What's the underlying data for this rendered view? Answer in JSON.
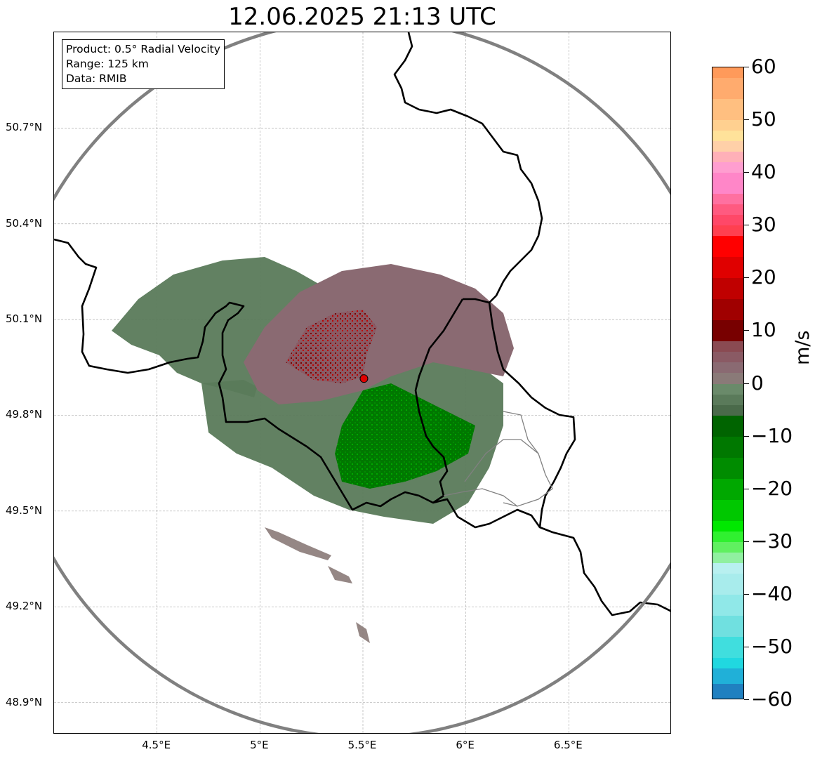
{
  "title": "12.06.2025 21:13 UTC",
  "info_box": {
    "product": "Product: 0.5° Radial Velocity",
    "range": "Range: 125 km",
    "data_source": "Data: RMIB"
  },
  "map": {
    "lon_range": [
      4.0,
      7.0
    ],
    "lat_range": [
      48.8,
      51.0
    ],
    "radar_site": {
      "lon": 5.505,
      "lat": 49.915
    },
    "range_ring_km": 125,
    "lon_ticks": [
      {
        "value": 4.5,
        "label": "4.5°E"
      },
      {
        "value": 5.0,
        "label": "5°E"
      },
      {
        "value": 5.5,
        "label": "5.5°E"
      },
      {
        "value": 6.0,
        "label": "6°E"
      },
      {
        "value": 6.5,
        "label": "6.5°E"
      }
    ],
    "lat_ticks": [
      {
        "value": 50.7,
        "label": "50.7°N"
      },
      {
        "value": 50.4,
        "label": "50.4°N"
      },
      {
        "value": 50.1,
        "label": "50.1°N"
      },
      {
        "value": 49.8,
        "label": "49.8°N"
      },
      {
        "value": 49.5,
        "label": "49.5°N"
      },
      {
        "value": 49.2,
        "label": "49.2°N"
      },
      {
        "value": 48.9,
        "label": "48.9°N"
      }
    ],
    "gridlines": true,
    "colors": {
      "border": "#000000",
      "province_border": "#808080",
      "range_ring": "#808080",
      "grid": "#b0b0b0",
      "radar_site": "#e00000"
    }
  },
  "colorbar": {
    "unit": "m/s",
    "min": -60,
    "max": 60,
    "ticks": [
      {
        "value": 60,
        "label": "60"
      },
      {
        "value": 50,
        "label": "50"
      },
      {
        "value": 40,
        "label": "40"
      },
      {
        "value": 30,
        "label": "30"
      },
      {
        "value": 20,
        "label": "20"
      },
      {
        "value": 10,
        "label": "10"
      },
      {
        "value": 0,
        "label": "0"
      },
      {
        "value": -10,
        "label": "−10"
      },
      {
        "value": -20,
        "label": "−20"
      },
      {
        "value": -30,
        "label": "−30"
      },
      {
        "value": -40,
        "label": "−40"
      },
      {
        "value": -50,
        "label": "−50"
      },
      {
        "value": -60,
        "label": "−60"
      }
    ],
    "stops": [
      {
        "from": 58,
        "to": 60,
        "color": "#ff9a5a"
      },
      {
        "from": 54,
        "to": 58,
        "color": "#ffab6e"
      },
      {
        "from": 50,
        "to": 54,
        "color": "#ffbf80"
      },
      {
        "from": 48,
        "to": 50,
        "color": "#ffd090"
      },
      {
        "from": 46,
        "to": 48,
        "color": "#ffe29a"
      },
      {
        "from": 44,
        "to": 46,
        "color": "#ffd0a8"
      },
      {
        "from": 42,
        "to": 44,
        "color": "#ffb0b8"
      },
      {
        "from": 40,
        "to": 42,
        "color": "#ff9ed0"
      },
      {
        "from": 36,
        "to": 40,
        "color": "#ff86c8"
      },
      {
        "from": 34,
        "to": 36,
        "color": "#ff70a0"
      },
      {
        "from": 32,
        "to": 34,
        "color": "#ff5a80"
      },
      {
        "from": 30,
        "to": 32,
        "color": "#ff4868"
      },
      {
        "from": 28,
        "to": 30,
        "color": "#ff4050"
      },
      {
        "from": 24,
        "to": 28,
        "color": "#ff0000"
      },
      {
        "from": 20,
        "to": 24,
        "color": "#e00000"
      },
      {
        "from": 16,
        "to": 20,
        "color": "#c00000"
      },
      {
        "from": 12,
        "to": 16,
        "color": "#a00000"
      },
      {
        "from": 8,
        "to": 12,
        "color": "#780000"
      },
      {
        "from": 6,
        "to": 8,
        "color": "#8a4a52"
      },
      {
        "from": 4,
        "to": 6,
        "color": "#8a5a64"
      },
      {
        "from": 2,
        "to": 4,
        "color": "#8a6a72"
      },
      {
        "from": 0,
        "to": 2,
        "color": "#8a7a78"
      },
      {
        "from": -2,
        "to": 0,
        "color": "#6a8a6a"
      },
      {
        "from": -4,
        "to": -2,
        "color": "#5a7a5a"
      },
      {
        "from": -6,
        "to": -4,
        "color": "#4a6a4a"
      },
      {
        "from": -10,
        "to": -6,
        "color": "#006400"
      },
      {
        "from": -14,
        "to": -10,
        "color": "#007800"
      },
      {
        "from": -18,
        "to": -14,
        "color": "#008c00"
      },
      {
        "from": -22,
        "to": -18,
        "color": "#00a800"
      },
      {
        "from": -26,
        "to": -22,
        "color": "#00c800"
      },
      {
        "from": -28,
        "to": -26,
        "color": "#00e800"
      },
      {
        "from": -30,
        "to": -28,
        "color": "#30f030"
      },
      {
        "from": -32,
        "to": -30,
        "color": "#60f060"
      },
      {
        "from": -34,
        "to": -32,
        "color": "#90f0a0"
      },
      {
        "from": -36,
        "to": -34,
        "color": "#b8f0f0"
      },
      {
        "from": -40,
        "to": -36,
        "color": "#a8ecec"
      },
      {
        "from": -44,
        "to": -40,
        "color": "#90e8e8"
      },
      {
        "from": -48,
        "to": -44,
        "color": "#70e0e0"
      },
      {
        "from": -52,
        "to": -48,
        "color": "#40dede"
      },
      {
        "from": -54,
        "to": -52,
        "color": "#20d8e0"
      },
      {
        "from": -57,
        "to": -54,
        "color": "#20b0d8"
      },
      {
        "from": -60,
        "to": -57,
        "color": "#2080c0"
      }
    ]
  }
}
